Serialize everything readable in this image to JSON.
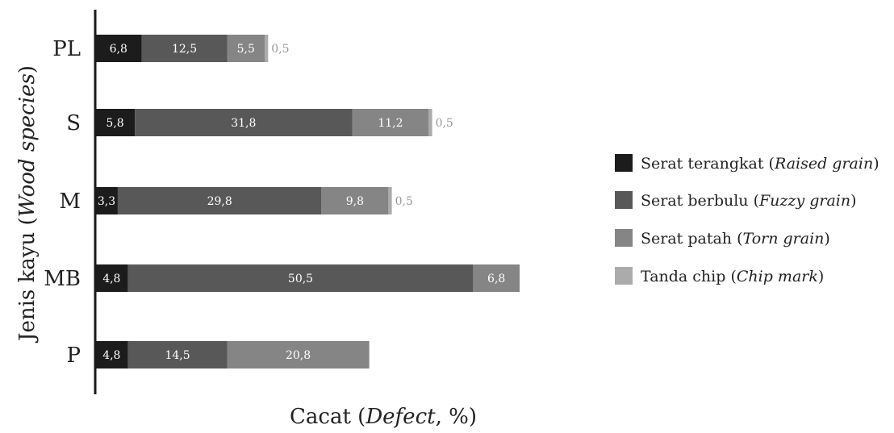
{
  "chart_data": {
    "type": "bar",
    "orientation": "horizontal",
    "stacked": true,
    "categories": [
      "PL",
      "S",
      "M",
      "MB",
      "P"
    ],
    "series": [
      {
        "name": "Serat terangkat (Raised grain)",
        "legend_main": "Serat terangkat (",
        "legend_italic": "Raised grain",
        "legend_close": ")",
        "color": "#1c1c1c",
        "label_color": "#ffffff",
        "values": [
          6.8,
          5.8,
          3.3,
          4.8,
          4.8
        ],
        "labels": [
          "6,8",
          "5,8",
          "3,3",
          "4,8",
          "4,8"
        ]
      },
      {
        "name": "Serat berbulu (Fuzzy grain)",
        "legend_main": "Serat berbulu (",
        "legend_italic": "Fuzzy grain",
        "legend_close": ")",
        "color": "#585858",
        "label_color": "#ffffff",
        "values": [
          12.5,
          31.8,
          29.8,
          50.5,
          14.5
        ],
        "labels": [
          "12,5",
          "31,8",
          "29,8",
          "50,5",
          "14,5"
        ]
      },
      {
        "name": "Serat patah (Torn grain)",
        "legend_main": "Serat patah (",
        "legend_italic": "Torn grain",
        "legend_close": ")",
        "color": "#858585",
        "label_color": "#ffffff",
        "values": [
          5.5,
          11.2,
          9.8,
          6.8,
          20.8
        ],
        "labels": [
          "5,5",
          "11,2",
          "9,8",
          "6,8",
          "20,8"
        ]
      },
      {
        "name": "Tanda chip (Chip mark)",
        "legend_main": "Tanda chip (",
        "legend_italic": "Chip mark",
        "legend_close": ")",
        "color": "#ababab",
        "label_color": "#999999",
        "values": [
          0.5,
          0.5,
          0.5,
          0,
          0
        ],
        "labels": [
          "0,5",
          "0,5",
          "0,5",
          "",
          ""
        ]
      }
    ],
    "xlabel": "Cacat (Defect, %)",
    "xlabel_main": "Cacat (",
    "xlabel_italic": "Defect",
    "xlabel_close": ", %)",
    "ylabel": "Jenis kayu (Wood species)",
    "ylabel_main": "Jenis kayu (",
    "ylabel_italic": "Wood species",
    "ylabel_close": ")",
    "xlim": [
      0,
      62
    ],
    "grid": false,
    "legend_position": "right"
  }
}
